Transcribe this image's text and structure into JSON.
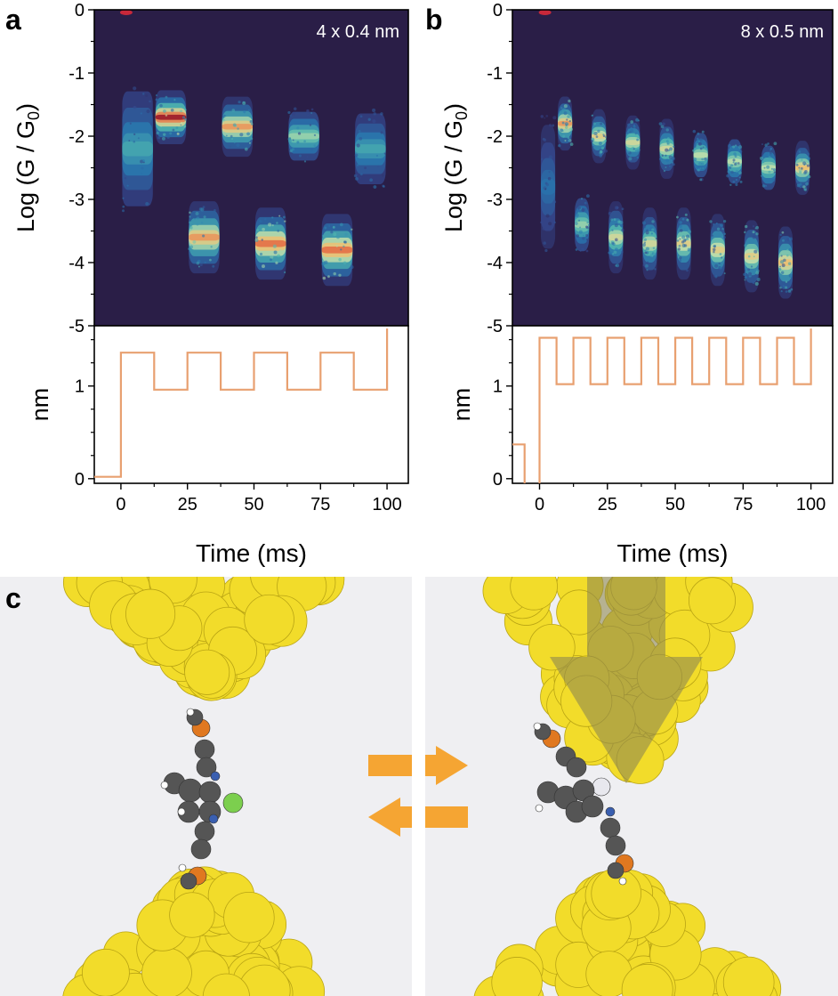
{
  "panel_labels": {
    "a": "a",
    "b": "b",
    "c": "c"
  },
  "colors": {
    "heatmap_background": "#2a1e47",
    "step_line": "#e8a070",
    "gold": "#f2dc2a",
    "arrow_orange": "#f5a533",
    "push_arrow": "#8f8950",
    "carbon": "#555555",
    "sulfur": "#e07820",
    "nitrogen": "#3a5fb0",
    "chlorine": "#7ccf4e",
    "panel_c_background": "#efeff2"
  },
  "chart_data": [
    {
      "id": "a-heatmap",
      "type": "heatmap",
      "annotation": "4 x 0.4 nm",
      "xlim": [
        -10,
        108
      ],
      "ylim": [
        -5,
        0
      ],
      "y_ticks": [
        0,
        -1,
        -2,
        -3,
        -4,
        -5
      ],
      "ylabel": "Log (G / G0)",
      "ylabel_main": "Log (G / G",
      "ylabel_sub": "0",
      "ylabel_close": ")",
      "segments": [
        {
          "t0": 0,
          "t1": 12.5,
          "level": -2.2,
          "spread": 1.3,
          "intensity": 0.45
        },
        {
          "t0": 12.5,
          "t1": 25,
          "level": -1.7,
          "spread": 0.45,
          "intensity": 1.0
        },
        {
          "t0": 25,
          "t1": 37.5,
          "level": -3.6,
          "spread": 0.6,
          "intensity": 0.85
        },
        {
          "t0": 37.5,
          "t1": 50,
          "level": -1.85,
          "spread": 0.5,
          "intensity": 0.85
        },
        {
          "t0": 50,
          "t1": 62.5,
          "level": -3.7,
          "spread": 0.6,
          "intensity": 0.9
        },
        {
          "t0": 62.5,
          "t1": 75,
          "level": -2.0,
          "spread": 0.55,
          "intensity": 0.6
        },
        {
          "t0": 75,
          "t1": 87.5,
          "level": -3.8,
          "spread": 0.6,
          "intensity": 0.9
        },
        {
          "t0": 87.5,
          "t1": 100,
          "level": -2.2,
          "spread": 0.8,
          "intensity": 0.45
        }
      ]
    },
    {
      "id": "a-distance",
      "type": "line",
      "xlim": [
        -10,
        108
      ],
      "ylim": [
        -0.05,
        1.65
      ],
      "x_ticks": [
        0,
        25,
        50,
        75,
        100
      ],
      "y_ticks": [
        0,
        1
      ],
      "xlabel": "Time (ms)",
      "ylabel": "nm",
      "x": [
        -10,
        0,
        0,
        12.5,
        12.5,
        25,
        25,
        37.5,
        37.5,
        50,
        50,
        62.5,
        62.5,
        75,
        75,
        87.5,
        87.5,
        100,
        100
      ],
      "y": [
        0.02,
        0.02,
        1.36,
        1.36,
        0.96,
        0.96,
        1.36,
        1.36,
        0.96,
        0.96,
        1.36,
        1.36,
        0.96,
        0.96,
        1.36,
        1.36,
        0.96,
        0.96,
        1.62
      ]
    },
    {
      "id": "b-heatmap",
      "type": "heatmap",
      "annotation": "8 x 0.5 nm",
      "xlim": [
        -10,
        108
      ],
      "ylim": [
        -5,
        0
      ],
      "y_ticks": [
        0,
        -1,
        -2,
        -3,
        -4,
        -5
      ],
      "ylabel": "Log (G / G0)",
      "ylabel_main": "Log (G / G",
      "ylabel_sub": "0",
      "ylabel_close": ")",
      "segments": [
        {
          "t0": 0,
          "t1": 6.25,
          "level": -2.8,
          "spread": 1.4,
          "intensity": 0.3
        },
        {
          "t0": 6.25,
          "t1": 12.5,
          "level": -1.8,
          "spread": 0.45,
          "intensity": 0.85
        },
        {
          "t0": 12.5,
          "t1": 18.75,
          "level": -3.4,
          "spread": 0.6,
          "intensity": 0.6
        },
        {
          "t0": 18.75,
          "t1": 25,
          "level": -2.0,
          "spread": 0.45,
          "intensity": 0.75
        },
        {
          "t0": 25,
          "t1": 31.25,
          "level": -3.6,
          "spread": 0.6,
          "intensity": 0.7
        },
        {
          "t0": 31.25,
          "t1": 37.5,
          "level": -2.1,
          "spread": 0.45,
          "intensity": 0.7
        },
        {
          "t0": 37.5,
          "t1": 43.75,
          "level": -3.7,
          "spread": 0.6,
          "intensity": 0.7
        },
        {
          "t0": 43.75,
          "t1": 50,
          "level": -2.2,
          "spread": 0.5,
          "intensity": 0.7
        },
        {
          "t0": 50,
          "t1": 56.25,
          "level": -3.7,
          "spread": 0.6,
          "intensity": 0.75
        },
        {
          "t0": 56.25,
          "t1": 62.5,
          "level": -2.3,
          "spread": 0.5,
          "intensity": 0.65
        },
        {
          "t0": 62.5,
          "t1": 68.75,
          "level": -3.8,
          "spread": 0.6,
          "intensity": 0.75
        },
        {
          "t0": 68.75,
          "t1": 75,
          "level": -2.4,
          "spread": 0.5,
          "intensity": 0.65
        },
        {
          "t0": 75,
          "t1": 81.25,
          "level": -3.9,
          "spread": 0.6,
          "intensity": 0.75
        },
        {
          "t0": 81.25,
          "t1": 87.5,
          "level": -2.5,
          "spread": 0.5,
          "intensity": 0.65
        },
        {
          "t0": 87.5,
          "t1": 93.75,
          "level": -4.0,
          "spread": 0.6,
          "intensity": 0.8
        },
        {
          "t0": 93.75,
          "t1": 100,
          "level": -2.5,
          "spread": 0.45,
          "intensity": 0.8
        }
      ]
    },
    {
      "id": "b-distance",
      "type": "line",
      "xlim": [
        -10,
        108
      ],
      "ylim": [
        -0.05,
        1.65
      ],
      "x_ticks": [
        0,
        25,
        50,
        75,
        100
      ],
      "y_ticks": [
        0,
        1
      ],
      "xlabel": "Time (ms)",
      "ylabel": "nm",
      "x": [
        -10,
        -5.5,
        -5.5,
        -5.5,
        0,
        0,
        6.25,
        6.25,
        12.5,
        12.5,
        18.75,
        18.75,
        25,
        25,
        31.25,
        31.25,
        37.5,
        37.5,
        43.75,
        43.75,
        50,
        50,
        56.25,
        56.25,
        62.5,
        62.5,
        68.75,
        68.75,
        75,
        75,
        81.25,
        81.25,
        87.5,
        87.5,
        93.75,
        93.75,
        100,
        100
      ],
      "y": [
        0.37,
        0.37,
        -0.05,
        null,
        -0.05,
        1.52,
        1.52,
        1.02,
        1.02,
        1.52,
        1.52,
        1.02,
        1.02,
        1.52,
        1.52,
        1.02,
        1.02,
        1.52,
        1.52,
        1.02,
        1.02,
        1.52,
        1.52,
        1.02,
        1.02,
        1.52,
        1.52,
        1.02,
        1.02,
        1.52,
        1.52,
        1.02,
        1.02,
        1.52,
        1.52,
        1.02,
        1.02,
        1.62
      ]
    }
  ]
}
